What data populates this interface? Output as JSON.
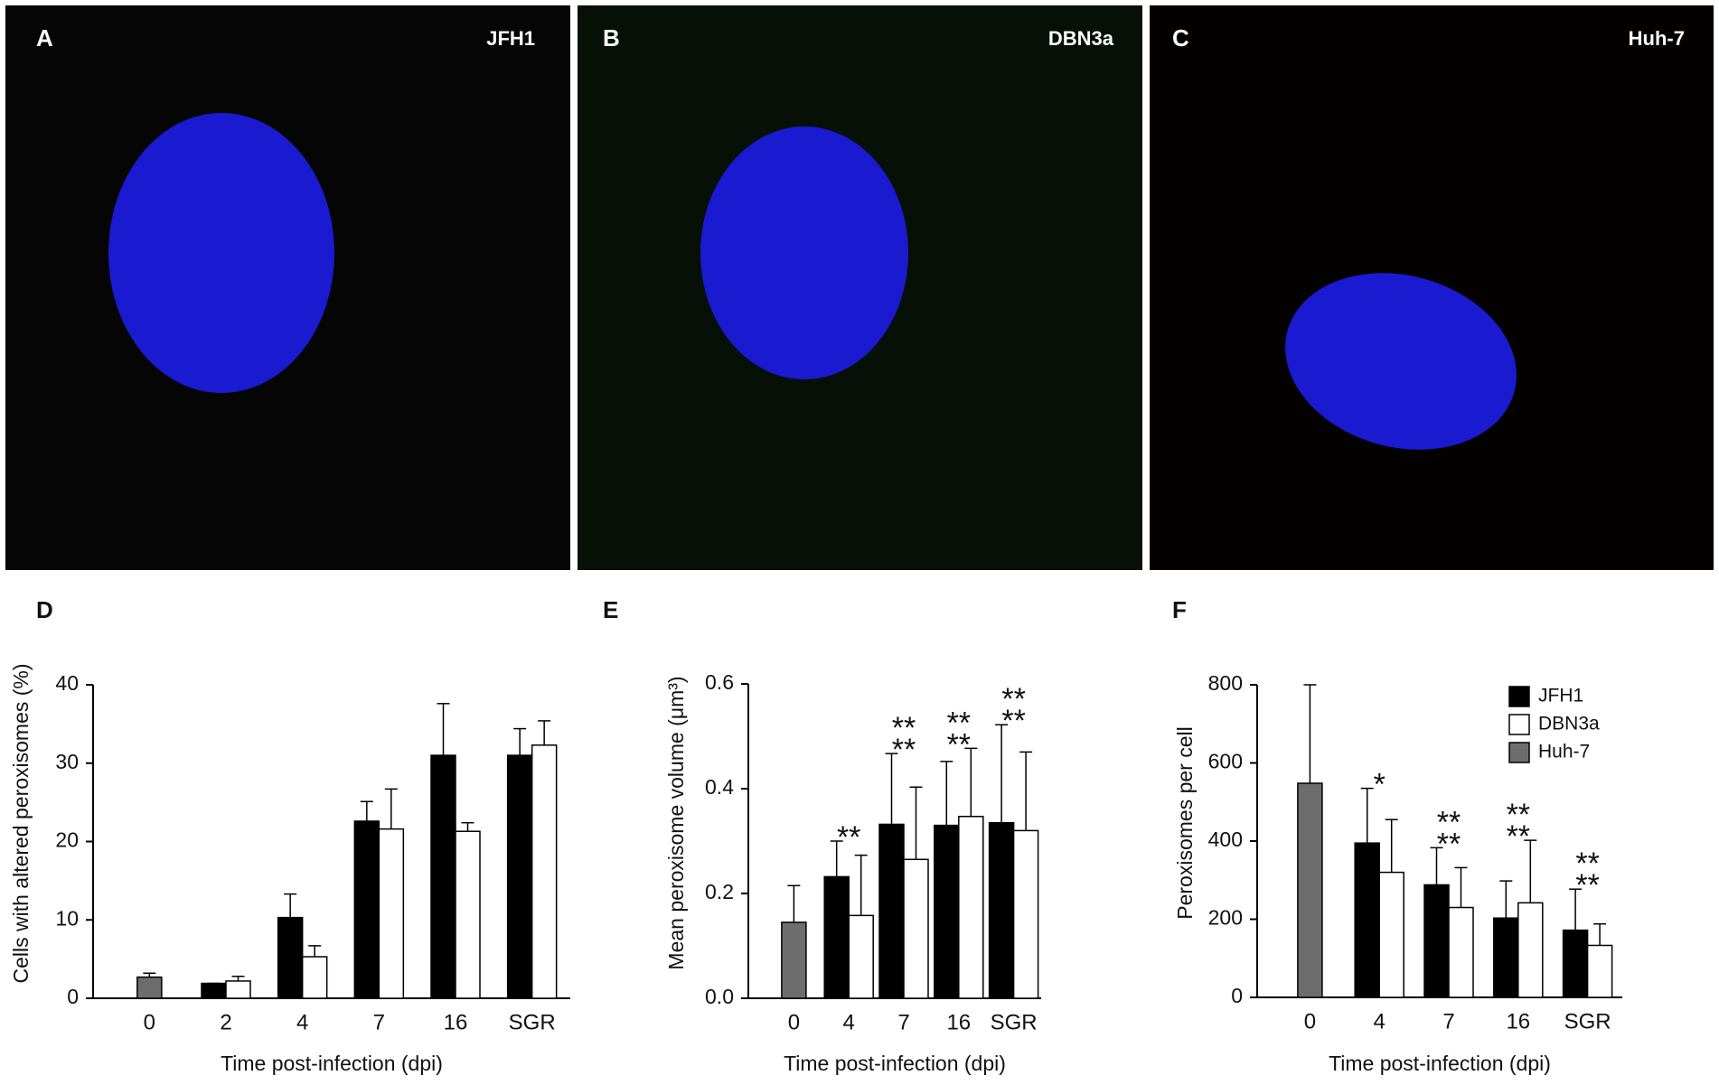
{
  "image_panels": [
    {
      "letter": "A",
      "label": "JFH1"
    },
    {
      "letter": "B",
      "label": "DBN3a"
    },
    {
      "letter": "C",
      "label": "Huh-7"
    }
  ],
  "chart_data": [
    {
      "type": "bar",
      "label": "D",
      "ylabel": "Cells with altered peroxisomes (%)",
      "xlabel": "Time post-infection (dpi)",
      "categories": [
        "0",
        "2",
        "4",
        "7",
        "16",
        "SGR"
      ],
      "series": [
        {
          "name": "JFH1",
          "color": "#000000",
          "values": [
            null,
            1.9,
            10.3,
            22.6,
            31.0,
            31.0
          ],
          "error": [
            null,
            0,
            3.0,
            2.5,
            6.6,
            3.4
          ]
        },
        {
          "name": "DBN3a",
          "color": "#ffffff",
          "values": [
            null,
            2.2,
            5.3,
            21.6,
            21.3,
            32.3
          ],
          "error": [
            null,
            0.6,
            1.4,
            5.1,
            1.1,
            3.1
          ]
        },
        {
          "name": "Huh-7",
          "color": "#6d6d6d",
          "values": [
            2.7,
            null,
            null,
            null,
            null,
            null
          ],
          "error": [
            0.5,
            null,
            null,
            null,
            null,
            null
          ]
        }
      ],
      "ylim": [
        0,
        40
      ],
      "yticks": [
        0,
        10,
        20,
        30,
        40
      ]
    },
    {
      "type": "bar",
      "label": "E",
      "ylabel": "Mean peroxisome volume (μm³)",
      "xlabel": "Time post-infection (dpi)",
      "categories": [
        "0",
        "4",
        "7",
        "16",
        "SGR"
      ],
      "series": [
        {
          "name": "JFH1",
          "color": "#000000",
          "values": [
            null,
            0.232,
            0.332,
            0.33,
            0.335
          ],
          "error": [
            null,
            0.068,
            0.135,
            0.122,
            0.187
          ]
        },
        {
          "name": "DBN3a",
          "color": "#ffffff",
          "values": [
            null,
            0.158,
            0.265,
            0.347,
            0.32
          ],
          "error": [
            null,
            0.115,
            0.138,
            0.13,
            0.15
          ]
        },
        {
          "name": "Huh-7",
          "color": "#6d6d6d",
          "values": [
            0.145,
            null,
            null,
            null,
            null
          ],
          "error": [
            0.07,
            null,
            null,
            null,
            null
          ]
        }
      ],
      "significance": [
        null,
        "**",
        "****",
        "****",
        "****"
      ],
      "ylim": [
        0,
        0.6
      ],
      "yticks": [
        {
          "value": 0,
          "label": "0.0"
        },
        0.2,
        0.4,
        0.6
      ]
    },
    {
      "type": "bar",
      "label": "F",
      "ylabel": "Peroxisomes per cell",
      "xlabel": "Time post-infection (dpi)",
      "categories": [
        "0",
        "4",
        "7",
        "16",
        "SGR"
      ],
      "series": [
        {
          "name": "JFH1",
          "color": "#000000",
          "values": [
            null,
            395,
            288,
            203,
            172
          ],
          "error": [
            null,
            140,
            95,
            95,
            105
          ]
        },
        {
          "name": "DBN3a",
          "color": "#ffffff",
          "values": [
            null,
            320,
            230,
            242,
            133
          ],
          "error": [
            null,
            135,
            102,
            160,
            55
          ]
        },
        {
          "name": "Huh-7",
          "color": "#6d6d6d",
          "values": [
            548,
            null,
            null,
            null,
            null
          ],
          "error": [
            252,
            null,
            null,
            null,
            null
          ]
        }
      ],
      "significance": [
        null,
        "*",
        "****",
        "****",
        "****"
      ],
      "legend": "upper right",
      "ylim": [
        0,
        800
      ],
      "yticks": [
        0,
        200,
        400,
        600,
        800
      ]
    }
  ]
}
